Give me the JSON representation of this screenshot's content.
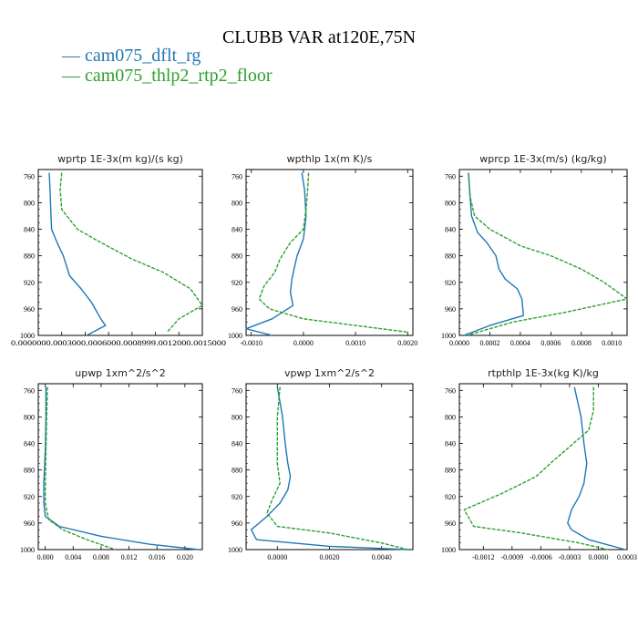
{
  "title": "CLUBB VAR at120E,75N",
  "legend": [
    {
      "label": "cam075_dflt_rg",
      "color": "#1f77b4"
    },
    {
      "label": "cam075_thlp2_rtp2_floor",
      "color": "#2ca02c"
    }
  ],
  "chart_data": [
    {
      "type": "line",
      "title": "wprtp  1E-3x(m kg)/(s kg)",
      "ylim": [
        1000,
        750
      ],
      "yticks": [
        "760",
        "800",
        "840",
        "880",
        "920",
        "960",
        "1000"
      ],
      "xlim": [
        0,
        0.0021
      ],
      "xtick_labels_overlapping": "0.0000000.0003000.0006000.0008999.0012000.0015000",
      "series": [
        {
          "name": "cam075_dflt_rg",
          "x": [
            0.00014,
            0.00015,
            0.00016,
            0.00017,
            0.00024,
            0.00032,
            0.00036,
            0.0004,
            0.00055,
            0.00068,
            0.0008,
            0.00086,
            0.00062
          ],
          "y": [
            755,
            780,
            810,
            840,
            860,
            880,
            895,
            910,
            930,
            950,
            975,
            985,
            1000
          ]
        },
        {
          "name": "cam075_thlp2_rtp2_floor",
          "x": [
            0.0003,
            0.00028,
            0.0003,
            0.0005,
            0.0008,
            0.0012,
            0.0016,
            0.00195,
            0.0021,
            0.0018,
            0.00165
          ],
          "y": [
            755,
            780,
            810,
            840,
            860,
            885,
            905,
            930,
            955,
            975,
            995
          ]
        }
      ]
    },
    {
      "type": "line",
      "title": "wpthlp  1x(m K)/s",
      "ylim": [
        1000,
        750
      ],
      "yticks": [
        "760",
        "800",
        "840",
        "880",
        "920",
        "960",
        "1000"
      ],
      "xlim": [
        -0.0011,
        0.0021
      ],
      "xticks": [
        -0.001,
        0.0,
        0.001,
        0.002
      ],
      "xtick_labels": [
        "-0.0010",
        "0.0000",
        "0.0010",
        "0.0020"
      ],
      "series": [
        {
          "name": "cam075_dflt_rg",
          "x": [
            -3e-05,
            2e-05,
            5e-05,
            0.0,
            -0.00012,
            -0.00018,
            -0.00022,
            -0.00025,
            -0.0002,
            -0.0006,
            -0.0011,
            -0.0006
          ],
          "y": [
            755,
            780,
            820,
            855,
            880,
            900,
            915,
            935,
            955,
            975,
            990,
            1000
          ]
        },
        {
          "name": "cam075_thlp2_rtp2_floor",
          "x": [
            0.0001,
            8e-05,
            5e-05,
            0.0,
            -0.00025,
            -0.00045,
            -0.00055,
            -0.00075,
            -0.00085,
            -0.00065,
            0.0,
            0.002
          ],
          "y": [
            755,
            780,
            810,
            840,
            860,
            885,
            905,
            925,
            945,
            960,
            975,
            995
          ]
        }
      ]
    },
    {
      "type": "line",
      "title": "wprcp  1E-3x(m/s) (kg/kg)",
      "ylim": [
        1000,
        750
      ],
      "yticks": [
        "760",
        "800",
        "840",
        "880",
        "920",
        "960",
        "1000"
      ],
      "xlim": [
        0,
        0.0011
      ],
      "xticks": [
        0.0,
        0.0002,
        0.0004,
        0.0006,
        0.0008,
        0.001
      ],
      "xtick_labels": [
        "0.0000",
        "0.0002",
        "0.0004",
        "0.0006",
        "0.0008",
        "0.0010"
      ],
      "series": [
        {
          "name": "cam075_dflt_rg",
          "x": [
            6e-05,
            7e-05,
            8e-05,
            0.00012,
            0.00018,
            0.00024,
            0.00026,
            0.0003,
            0.00038,
            0.00041,
            0.00042,
            0.0002,
            3e-05
          ],
          "y": [
            755,
            790,
            820,
            845,
            860,
            880,
            900,
            915,
            930,
            945,
            970,
            985,
            1000
          ]
        },
        {
          "name": "cam075_thlp2_rtp2_floor",
          "x": [
            6e-05,
            7e-05,
            0.0001,
            0.0002,
            0.0004,
            0.0006,
            0.0008,
            0.00095,
            0.0011,
            0.0007,
            0.00035,
            5e-05
          ],
          "y": [
            755,
            790,
            820,
            840,
            865,
            880,
            900,
            920,
            945,
            965,
            980,
            1000
          ]
        }
      ]
    },
    {
      "type": "line",
      "title": "upwp  1xm^2/s^2",
      "ylim": [
        1000,
        750
      ],
      "yticks": [
        "760",
        "800",
        "840",
        "880",
        "920",
        "960",
        "1000"
      ],
      "xlim": [
        -0.001,
        0.0225
      ],
      "xticks": [
        0.0,
        0.004,
        0.008,
        0.012,
        0.016,
        0.02
      ],
      "xtick_labels": [
        "0.000",
        "0.004",
        "0.008",
        "0.012",
        "0.016",
        "0.020"
      ],
      "series": [
        {
          "name": "cam075_dflt_rg",
          "x": [
            0.0001,
            0.0001,
            0.0,
            -0.0002,
            -0.0002,
            0.0,
            0.002,
            0.008,
            0.015,
            0.022
          ],
          "y": [
            755,
            800,
            850,
            900,
            930,
            950,
            965,
            980,
            992,
            1000
          ]
        },
        {
          "name": "cam075_thlp2_rtp2_floor",
          "x": [
            0.0003,
            0.0002,
            0.0001,
            0.0,
            0.0,
            0.0005,
            0.0025,
            0.006,
            0.01
          ],
          "y": [
            755,
            800,
            850,
            900,
            930,
            955,
            970,
            985,
            1000
          ]
        }
      ]
    },
    {
      "type": "line",
      "title": "vpwp  1xm^2/s^2",
      "ylim": [
        1000,
        750
      ],
      "yticks": [
        "760",
        "800",
        "840",
        "880",
        "920",
        "960",
        "1000"
      ],
      "xlim": [
        -0.0012,
        0.0052
      ],
      "xticks": [
        0.0,
        0.002,
        0.004
      ],
      "xtick_labels": [
        "0.0000",
        "0.0020",
        "0.0040"
      ],
      "series": [
        {
          "name": "cam075_dflt_rg",
          "x": [
            0.0,
            0.0002,
            0.0003,
            0.0004,
            0.0005,
            0.0004,
            0.0001,
            -0.0004,
            -0.001,
            -0.0008,
            0.002,
            0.005
          ],
          "y": [
            755,
            800,
            840,
            870,
            890,
            910,
            930,
            950,
            970,
            985,
            995,
            1000
          ]
        },
        {
          "name": "cam075_thlp2_rtp2_floor",
          "x": [
            0.0001,
            0.0,
            0.0,
            0.0,
            0.0001,
            -0.0002,
            -0.0004,
            0.0,
            0.002,
            0.004,
            0.005
          ],
          "y": [
            755,
            800,
            840,
            870,
            900,
            925,
            945,
            965,
            975,
            990,
            1000
          ]
        }
      ]
    },
    {
      "type": "line",
      "title": "rtpthlp  1E-3x(kg K)/kg",
      "ylim": [
        1000,
        750
      ],
      "yticks": [
        "760",
        "800",
        "840",
        "880",
        "920",
        "960",
        "1000"
      ],
      "xlim": [
        -0.00145,
        0.0003
      ],
      "xticks": [
        -0.0012,
        -0.0009,
        -0.0006,
        -0.0003,
        0.0,
        0.0003
      ],
      "xtick_labels": [
        "-0.0012",
        "-0.0009",
        "-0.0006",
        "-0.0003",
        "0.0000",
        "0.0003"
      ],
      "series": [
        {
          "name": "cam075_dflt_rg",
          "x": [
            -0.00025,
            -0.00018,
            -0.00015,
            -0.00012,
            -0.00015,
            -0.0002,
            -0.00028,
            -0.00032,
            -0.00028,
            -0.0001,
            0.00028
          ],
          "y": [
            755,
            800,
            840,
            870,
            900,
            920,
            940,
            960,
            970,
            985,
            1000
          ]
        },
        {
          "name": "cam075_thlp2_rtp2_floor",
          "x": [
            -5e-05,
            -5e-05,
            -0.0001,
            -0.0003,
            -0.0005,
            -0.00065,
            -0.001,
            -0.0014,
            -0.0013,
            -0.0008,
            -0.0002,
            0.0001
          ],
          "y": [
            755,
            790,
            820,
            845,
            870,
            890,
            915,
            940,
            965,
            975,
            990,
            1000
          ]
        }
      ]
    }
  ]
}
